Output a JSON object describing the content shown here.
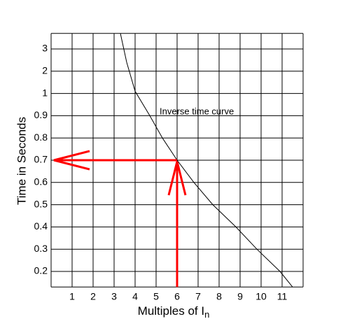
{
  "chart_data": {
    "type": "line",
    "xlabel": "Multiples of I",
    "xlabel_subscript": "n",
    "ylabel": "Time in Seconds",
    "annotation": "Inverse time curve",
    "x": [
      3.3,
      3.6,
      4,
      4.7,
      5.3,
      6,
      6.8,
      7.7,
      8.8,
      9.8,
      10.9,
      11.5
    ],
    "series": [
      {
        "name": "Inverse time curve",
        "color": "#000000",
        "values": [
          3.7,
          2.4,
          1.1,
          0.9,
          0.8,
          0.7,
          0.6,
          0.5,
          0.4,
          0.3,
          0.2,
          0.13
        ]
      }
    ],
    "xlim": [
      0,
      12
    ],
    "xticks": [
      1,
      2,
      3,
      4,
      5,
      6,
      7,
      8,
      9,
      10,
      11
    ],
    "ylim": [
      0.13,
      3.7
    ],
    "yticks": [
      0.2,
      0.3,
      0.4,
      0.5,
      0.6,
      0.7,
      0.8,
      0.9,
      1,
      2,
      3
    ],
    "grid": true,
    "marker": {
      "x": 6,
      "y": 0.7,
      "color": "#ff0000"
    }
  }
}
